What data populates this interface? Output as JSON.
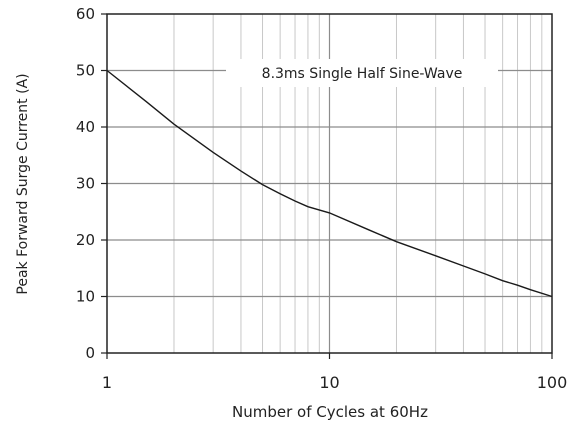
{
  "chart_data": {
    "type": "line",
    "xscale": "log",
    "xlim": [
      1,
      100
    ],
    "ylim": [
      0,
      60
    ],
    "x_ticks": [
      "1",
      "10",
      "100"
    ],
    "y_ticks": [
      "0",
      "10",
      "20",
      "30",
      "40",
      "50",
      "60"
    ],
    "xlabel": "Number of Cycles at 60Hz",
    "ylabel": "Peak Forward Surge Current  (A)",
    "annotation": "8.3ms Single Half Sine-Wave",
    "grid": true,
    "series": [
      {
        "x": [
          1,
          1.5,
          2,
          3,
          4,
          5,
          6,
          7,
          8,
          10,
          15,
          20,
          30,
          40,
          50,
          60,
          70,
          80,
          100
        ],
        "y": [
          50,
          44.5,
          40.5,
          35.5,
          32.2,
          29.8,
          28.2,
          26.9,
          25.9,
          24.8,
          21.8,
          19.7,
          17.2,
          15.4,
          14.0,
          12.8,
          12.0,
          11.2,
          10
        ]
      }
    ]
  },
  "colors": {
    "axis": "#222222",
    "grid": "#c8c8c8",
    "grid_major": "#8c8c8c",
    "line": "#1a1a1a"
  }
}
